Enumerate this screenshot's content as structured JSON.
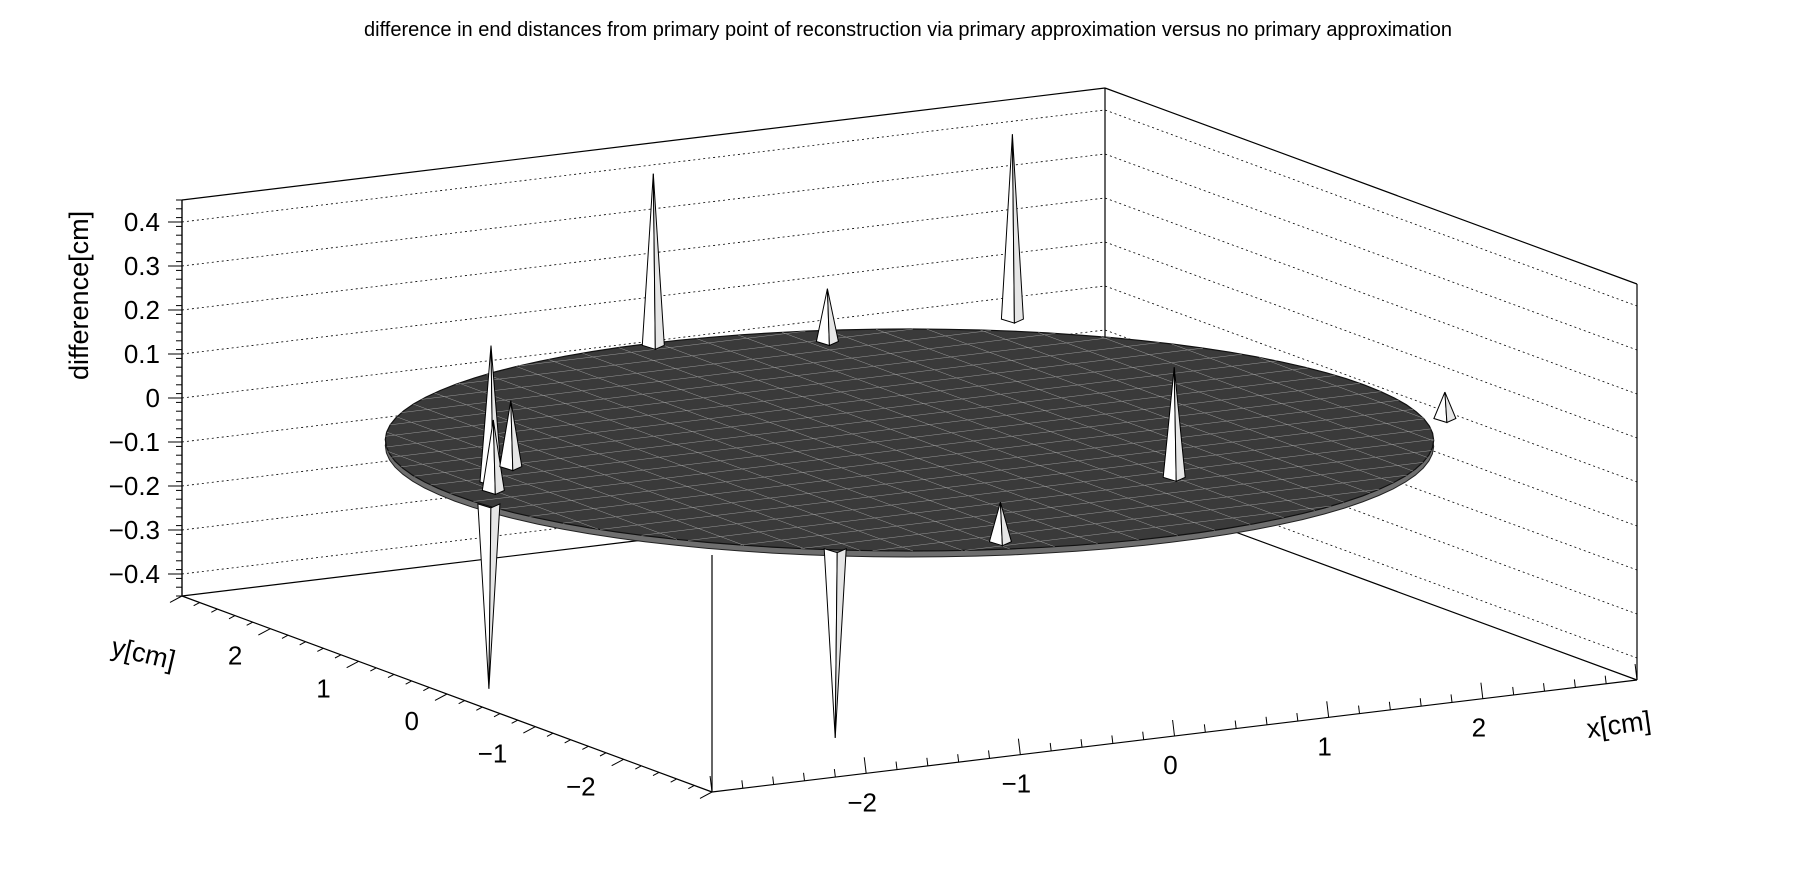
{
  "chart_data": {
    "type": "surface3d",
    "title": "difference in end distances from primary point of reconstruction via primary approximation versus no primary approximation",
    "xlabel": "x[cm]",
    "ylabel": "y[cm]",
    "zlabel": "difference[cm]",
    "xlim": [
      -3,
      3
    ],
    "ylim": [
      -3,
      3
    ],
    "zlim": [
      -0.45,
      0.45
    ],
    "x_ticks": [
      "−2",
      "−1",
      "0",
      "1",
      "2"
    ],
    "y_ticks": [
      "−2",
      "−1",
      "0",
      "1",
      "2"
    ],
    "z_ticks": [
      "0.4",
      "0.3",
      "0.2",
      "0.1",
      "0",
      "−0.1",
      "−0.2",
      "−0.3",
      "−0.4"
    ],
    "surface": "disk of radius ~3 cm, difference ≈ 0 with isolated spikes",
    "spikes": [
      {
        "x": -2.6,
        "y": 0.2,
        "z": 0.31
      },
      {
        "x": -2.7,
        "y": 0.0,
        "z": 0.16
      },
      {
        "x": -2.3,
        "y": 0.5,
        "z": 0.15
      },
      {
        "x": -2.9,
        "y": -0.3,
        "z": -0.42
      },
      {
        "x": -1.8,
        "y": -2.3,
        "z": -0.43
      },
      {
        "x": 0.0,
        "y": 2.9,
        "z": 0.39
      },
      {
        "x": 0.9,
        "y": 2.5,
        "z": 0.12
      },
      {
        "x": 2.1,
        "y": 2.5,
        "z": 0.42
      },
      {
        "x": 0.8,
        "y": -1.6,
        "z": 0.25
      },
      {
        "x": -0.9,
        "y": -2.6,
        "z": 0.09
      },
      {
        "x": 2.9,
        "y": -1.0,
        "z": 0.06
      }
    ],
    "grid": true,
    "legend": "none"
  }
}
